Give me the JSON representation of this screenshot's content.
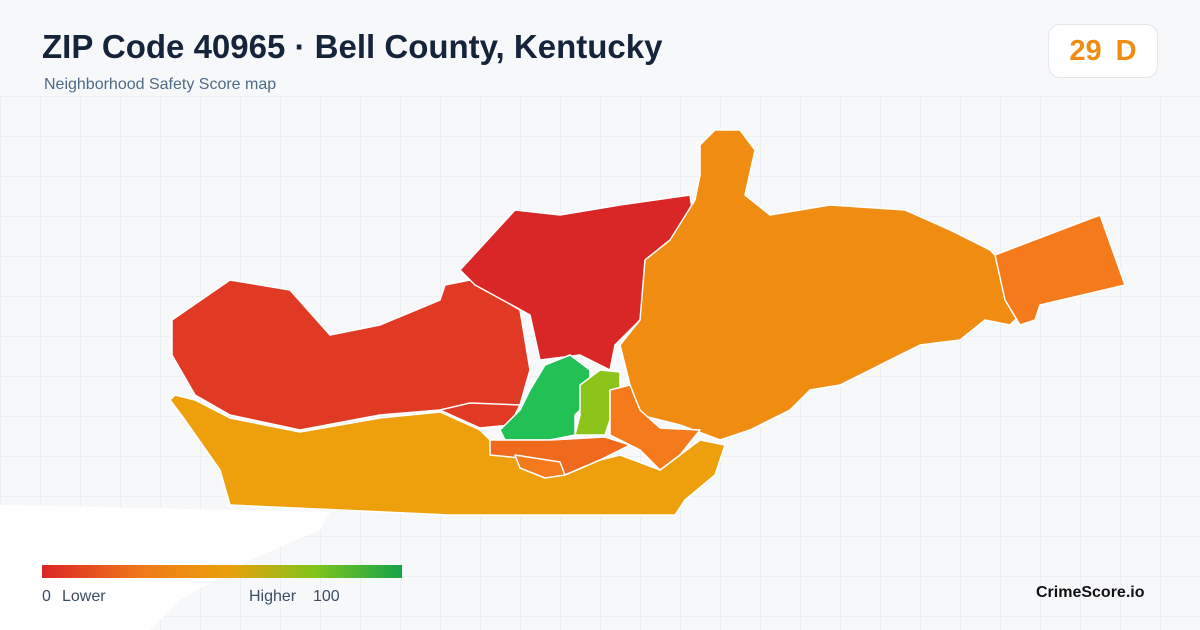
{
  "header": {
    "title": "ZIP Code 40965 · Bell County, Kentucky",
    "subtitle": "Neighborhood Safety Score map",
    "score": 29,
    "grade": "D"
  },
  "legend": {
    "min": 0,
    "low_label": "Lower",
    "high_label": "Higher",
    "max": 100
  },
  "footer": {
    "brand": "CrimeScore.io"
  }
}
